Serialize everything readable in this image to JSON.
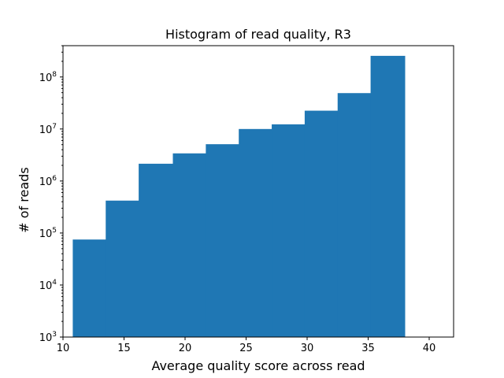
{
  "chart_data": {
    "type": "bar",
    "title": "Histogram of read quality, R3",
    "xlabel": "Average quality score across read",
    "ylabel": "# of reads",
    "xlim": [
      10,
      42
    ],
    "ylim": [
      1000,
      400000000
    ],
    "yscale": "log",
    "grid": false,
    "color": "#1f77b4",
    "xticks": [
      10,
      15,
      20,
      25,
      30,
      35,
      40
    ],
    "xtick_labels": [
      "10",
      "15",
      "20",
      "25",
      "30",
      "35",
      "40"
    ],
    "yticks": [
      {
        "value": 1000,
        "base": "10",
        "exp": "3"
      },
      {
        "value": 10000,
        "base": "10",
        "exp": "4"
      },
      {
        "value": 100000,
        "base": "10",
        "exp": "5"
      },
      {
        "value": 1000000,
        "base": "10",
        "exp": "6"
      },
      {
        "value": 10000000,
        "base": "10",
        "exp": "7"
      },
      {
        "value": 100000000,
        "base": "10",
        "exp": "8"
      }
    ],
    "bins": [
      {
        "x0": 10.8,
        "x1": 13.5,
        "value": 75000
      },
      {
        "x0": 13.5,
        "x1": 16.2,
        "value": 420000
      },
      {
        "x0": 16.2,
        "x1": 19.0,
        "value": 2150000
      },
      {
        "x0": 19.0,
        "x1": 21.7,
        "value": 3400000
      },
      {
        "x0": 21.7,
        "x1": 24.4,
        "value": 5100000
      },
      {
        "x0": 24.4,
        "x1": 27.1,
        "value": 10000000
      },
      {
        "x0": 27.1,
        "x1": 29.8,
        "value": 12300000
      },
      {
        "x0": 29.8,
        "x1": 32.5,
        "value": 22500000
      },
      {
        "x0": 32.5,
        "x1": 35.2,
        "value": 49000000
      },
      {
        "x0": 35.2,
        "x1": 38.0,
        "value": 255000000
      }
    ]
  }
}
